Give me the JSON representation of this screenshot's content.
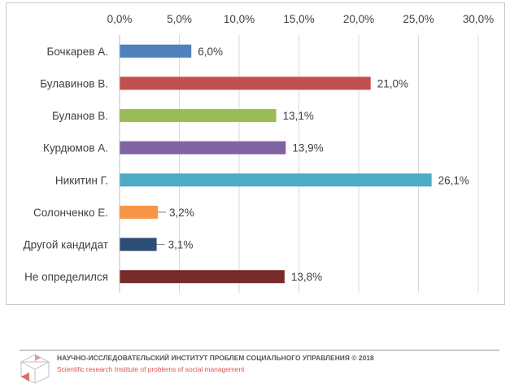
{
  "chart_data": {
    "type": "bar",
    "orientation": "horizontal",
    "categories": [
      "Бочкарев А.",
      "Булавинов В.",
      "Буланов В.",
      "Курдюмов А.",
      "Никитин Г.",
      "Солонченко Е.",
      "Другой кандидат",
      "Не определился"
    ],
    "values": [
      6.0,
      21.0,
      13.1,
      13.9,
      26.1,
      3.2,
      3.1,
      13.8
    ],
    "data_labels": [
      "6,0%",
      "21,0%",
      "13,1%",
      "13,9%",
      "26,1%",
      "3,2%",
      "3,1%",
      "13,8%"
    ],
    "colors": [
      "#4f81bd",
      "#c0504d",
      "#9bbb59",
      "#8064a2",
      "#4bacc6",
      "#f79646",
      "#2c4d75",
      "#772c2a"
    ],
    "xlim": [
      0,
      30
    ],
    "xticks": [
      0,
      5,
      10,
      15,
      20,
      25,
      30
    ],
    "xtick_labels": [
      "0,0%",
      "5,0%",
      "10,0%",
      "15,0%",
      "20,0%",
      "25,0%",
      "30,0%"
    ],
    "x_axis_position": "top",
    "grid": true,
    "legend": "none",
    "title": "",
    "xlabel": "",
    "ylabel": ""
  },
  "footer": {
    "title": "НАУЧНО-ИССЛЕДОВАТЕЛЬСКИЙ ИНСТИТУТ ПРОБЛЕМ СОЦИАЛЬНОГО УПРАВЛЕНИЯ   © 2018",
    "subtitle": "Scientific research Institute of problems of social management",
    "subtitle_color": "#d9534f"
  }
}
